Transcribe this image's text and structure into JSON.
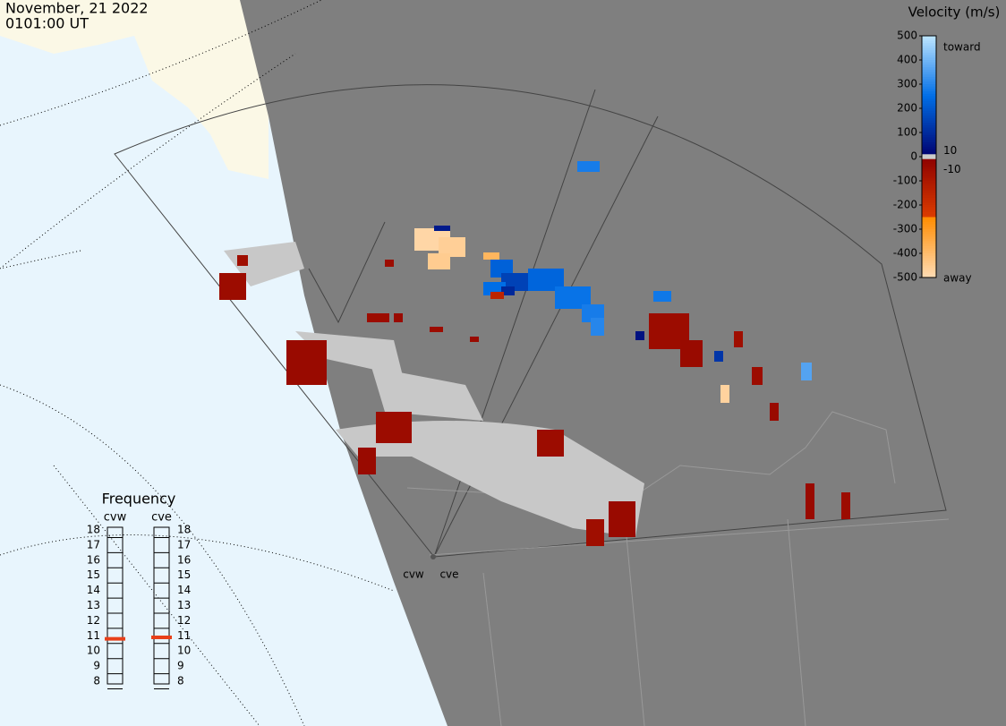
{
  "header": {
    "date": "November, 21 2022",
    "time": "0101:00 UT"
  },
  "colorbar": {
    "title": "Velocity (m/s)",
    "ticks": [
      500,
      400,
      300,
      200,
      100,
      0,
      -100,
      -200,
      -300,
      -400,
      -500
    ],
    "limits": [
      10,
      -10
    ],
    "toward": "toward",
    "away": "away"
  },
  "frequency": {
    "title": "Frequency",
    "ticks": [
      18,
      17,
      16,
      15,
      14,
      13,
      12,
      11,
      10,
      9,
      8
    ],
    "radars": [
      {
        "name": "cvw",
        "value": 10.8
      },
      {
        "name": "cve",
        "value": 10.9
      }
    ]
  },
  "stations": [
    "cvw",
    "cve"
  ],
  "echoes": {
    "velocities": [
      -480,
      -460,
      -450,
      -380,
      60,
      220,
      150,
      250,
      230,
      260,
      280,
      300,
      280,
      270,
      360,
      90,
      40,
      -50,
      -40,
      -60,
      -50,
      -50,
      -40,
      -50,
      -40,
      -50,
      -40,
      -60,
      -50,
      -40,
      -50,
      -40,
      -50,
      -40,
      -60,
      -40,
      -50,
      -150,
      120,
      -470
    ]
  }
}
